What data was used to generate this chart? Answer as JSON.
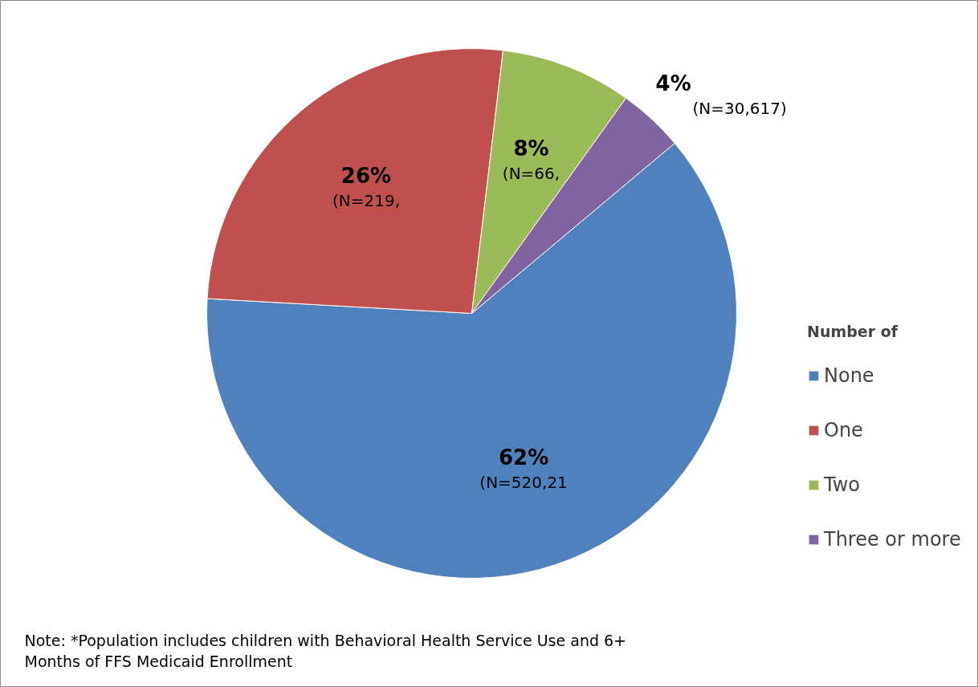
{
  "chart_data": {
    "type": "pie",
    "categories": [
      "None",
      "One",
      "Two",
      "Three or more"
    ],
    "values": [
      62,
      26,
      8,
      4
    ],
    "colors": [
      "#4f81bd",
      "#c0504d",
      "#9bbb59",
      "#8064a2"
    ],
    "value_labels": [
      "62%",
      "26%",
      "8%",
      "4%"
    ],
    "legend_title": "Number of",
    "legend": "right",
    "annotations": [
      {
        "text": "(N=520,21",
        "x": "None"
      },
      {
        "text": "(N=219,",
        "x": "One"
      },
      {
        "text": "(N=66,",
        "x": "Two"
      },
      {
        "text": "(N=30,617)",
        "x": "Three or more"
      },
      "Note:  *Population includes children with Behavioral Health Service Use and 6+\nMonths of FFS Medicaid Enrollment"
    ]
  }
}
